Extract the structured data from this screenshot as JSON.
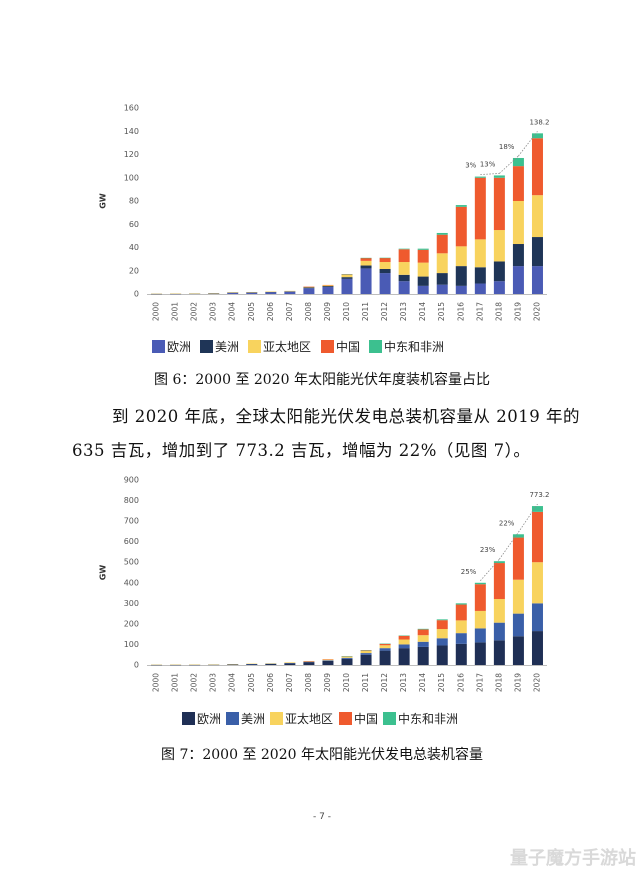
{
  "chart_data": [
    {
      "type": "bar",
      "stacked": true,
      "ylabel": "GW",
      "ylim": [
        0,
        160
      ],
      "yticks": [
        0,
        20,
        40,
        60,
        80,
        100,
        120,
        140,
        160
      ],
      "categories": [
        "2000",
        "2001",
        "2002",
        "2003",
        "2004",
        "2005",
        "2006",
        "2007",
        "2008",
        "2009",
        "2010",
        "2011",
        "2012",
        "2013",
        "2014",
        "2015",
        "2016",
        "2017",
        "2018",
        "2019",
        "2020"
      ],
      "series": [
        {
          "name": "欧洲",
          "color": "#4a5bb5",
          "values": [
            0.1,
            0.2,
            0.3,
            0.4,
            1,
            1.2,
            1.5,
            2,
            5,
            6,
            13,
            22,
            18,
            11,
            7,
            8,
            7,
            9,
            11,
            24,
            24
          ]
        },
        {
          "name": "美洲",
          "color": "#1f3557",
          "values": [
            0.05,
            0.05,
            0.1,
            0.1,
            0.2,
            0.2,
            0.3,
            0.3,
            0.6,
            0.8,
            1.5,
            2.5,
            3.5,
            5.5,
            8,
            10,
            17,
            14,
            17,
            19,
            25
          ]
        },
        {
          "name": "亚太地区",
          "color": "#f8d35e",
          "values": [
            0.1,
            0.1,
            0.1,
            0.2,
            0.3,
            0.3,
            0.4,
            0.4,
            0.6,
            0.8,
            2,
            4,
            6,
            11,
            12,
            17,
            17,
            24,
            27,
            37,
            36
          ]
        },
        {
          "name": "中国",
          "color": "#ef5a2e",
          "values": [
            0,
            0,
            0,
            0,
            0,
            0,
            0,
            0,
            0.1,
            0.2,
            0.5,
            2.5,
            3.5,
            11,
            11,
            16,
            34,
            53,
            45,
            30,
            49
          ]
        },
        {
          "name": "中东和非洲",
          "color": "#3cc08f",
          "values": [
            0,
            0,
            0,
            0,
            0,
            0,
            0,
            0,
            0,
            0,
            0.1,
            0.1,
            0.2,
            0.5,
            1,
            1.5,
            1.5,
            1,
            2,
            7,
            4.2
          ]
        }
      ],
      "annotations": [
        {
          "label": "3%",
          "index": 17
        },
        {
          "label": "13%",
          "index": 18
        },
        {
          "label": "18%",
          "index": 19
        },
        {
          "label": "138.2",
          "index": 20
        }
      ]
    },
    {
      "type": "bar",
      "stacked": true,
      "ylabel": "GW",
      "ylim": [
        0,
        900
      ],
      "yticks": [
        0,
        100,
        200,
        300,
        400,
        500,
        600,
        700,
        800,
        900
      ],
      "categories": [
        "2000",
        "2001",
        "2002",
        "2003",
        "2004",
        "2005",
        "2006",
        "2007",
        "2008",
        "2009",
        "2010",
        "2011",
        "2012",
        "2013",
        "2014",
        "2015",
        "2016",
        "2017",
        "2018",
        "2019",
        "2020"
      ],
      "series": [
        {
          "name": "欧洲",
          "color": "#1f2f55",
          "values": [
            0.5,
            0.8,
            1,
            1.5,
            2.5,
            4,
            5,
            8,
            14,
            20,
            30,
            50,
            70,
            82,
            88,
            95,
            103,
            110,
            120,
            140,
            165
          ]
        },
        {
          "name": "美洲",
          "color": "#3a5fa8",
          "values": [
            0.5,
            0.5,
            0.5,
            0.5,
            1,
            1,
            1.5,
            2,
            2,
            3,
            5,
            8,
            12,
            18,
            25,
            35,
            52,
            68,
            86,
            110,
            135
          ]
        },
        {
          "name": "亚太地区",
          "color": "#f8d35e",
          "values": [
            0.5,
            0.5,
            1,
            1,
            1,
            2,
            2,
            3,
            3,
            4,
            6,
            10,
            14,
            24,
            32,
            45,
            62,
            85,
            115,
            165,
            200
          ]
        },
        {
          "name": "中国",
          "color": "#ef5a2e",
          "values": [
            0,
            0,
            0,
            0,
            0,
            0,
            0,
            0,
            0.5,
            1,
            1,
            3,
            7,
            18,
            28,
            43,
            77,
            130,
            175,
            205,
            245
          ]
        },
        {
          "name": "中东和非洲",
          "color": "#3cc08f",
          "values": [
            0,
            0,
            0,
            0,
            0,
            0,
            0,
            0,
            0,
            0,
            0.5,
            1,
            1,
            2,
            3,
            4,
            6,
            7,
            9,
            16,
            28.2
          ]
        }
      ],
      "annotations": [
        {
          "label": "25%",
          "index": 17
        },
        {
          "label": "23%",
          "index": 18
        },
        {
          "label": "22%",
          "index": 19
        },
        {
          "label": "773.2",
          "index": 20
        }
      ]
    }
  ],
  "figure6": {
    "legend": [
      "欧洲",
      "美洲",
      "亚太地区",
      "中国",
      "中东和非洲"
    ],
    "caption": "图 6：2000 至 2020 年太阳能光伏年度装机容量占比"
  },
  "paragraph": {
    "line1": "到 2020 年底，全球太阳能光伏发电总装机容量从 2019 年的",
    "line2": "635 吉瓦，增加到了 773.2 吉瓦，增幅为 22%（见图 7）。"
  },
  "figure7": {
    "legend": [
      "欧洲",
      "美洲",
      "亚太地区",
      "中国",
      "中东和非洲"
    ],
    "caption": "图 7：2000 至 2020 年太阳能光伏发电总装机容量"
  },
  "page_number": "- 7 -",
  "watermark": "量子魔方手游站"
}
